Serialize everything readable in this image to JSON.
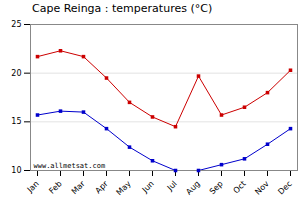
{
  "chart_data": {
    "type": "line",
    "title": "Cape Reinga : temperatures (°C)",
    "categories": [
      "Jan",
      "Feb",
      "Mar",
      "Apr",
      "May",
      "Jun",
      "Jul",
      "Aug",
      "Sep",
      "Oct",
      "Nov",
      "Dec"
    ],
    "series": [
      {
        "color": "#cc0000",
        "values": [
          21.7,
          22.3,
          21.7,
          19.5,
          17.0,
          15.5,
          14.5,
          19.7,
          15.7,
          16.5,
          18.0,
          20.3
        ]
      },
      {
        "color": "#0000cc",
        "values": [
          15.7,
          16.1,
          16.0,
          14.3,
          12.4,
          11.0,
          10.0,
          10.0,
          10.6,
          11.2,
          12.7,
          14.3
        ]
      }
    ],
    "ylim": [
      10,
      25
    ],
    "yticks": [
      10,
      15,
      20,
      25
    ],
    "grid": true,
    "marker": "square",
    "annotations": [
      "www.allmetsat.com"
    ]
  }
}
